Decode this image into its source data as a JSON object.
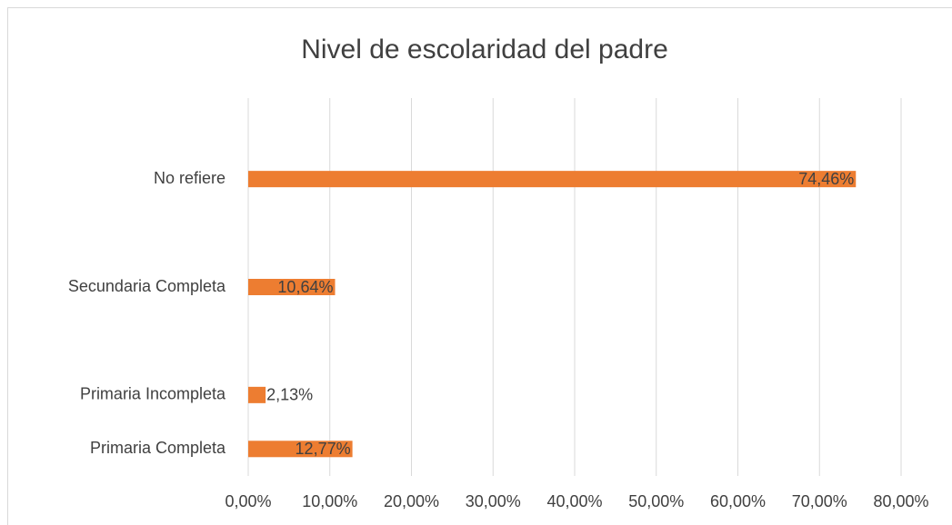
{
  "chart_data": {
    "type": "bar",
    "orientation": "horizontal",
    "title": "Nivel de escolaridad del padre",
    "categories": [
      "Primaria Completa",
      "Primaria Incompleta",
      null,
      "Secundaria Completa",
      null,
      "No refiere",
      null
    ],
    "values": [
      12.77,
      2.13,
      null,
      10.64,
      null,
      74.46,
      null
    ],
    "value_labels": [
      "12,77%",
      "2,13%",
      null,
      "10,64%",
      null,
      "74,46%",
      null
    ],
    "color": "#ed7d31",
    "xlim": [
      0,
      80
    ],
    "xticks": [
      {
        "value": 0,
        "label": "0,00%"
      },
      {
        "value": 10,
        "label": "10,00%"
      },
      {
        "value": 20,
        "label": "20,00%"
      },
      {
        "value": 30,
        "label": "30,00%"
      },
      {
        "value": 40,
        "label": "40,00%"
      },
      {
        "value": 50,
        "label": "50,00%"
      },
      {
        "value": 60,
        "label": "60,00%"
      },
      {
        "value": 70,
        "label": "70,00%"
      },
      {
        "value": 80,
        "label": "80,00%"
      }
    ],
    "grid": true
  }
}
